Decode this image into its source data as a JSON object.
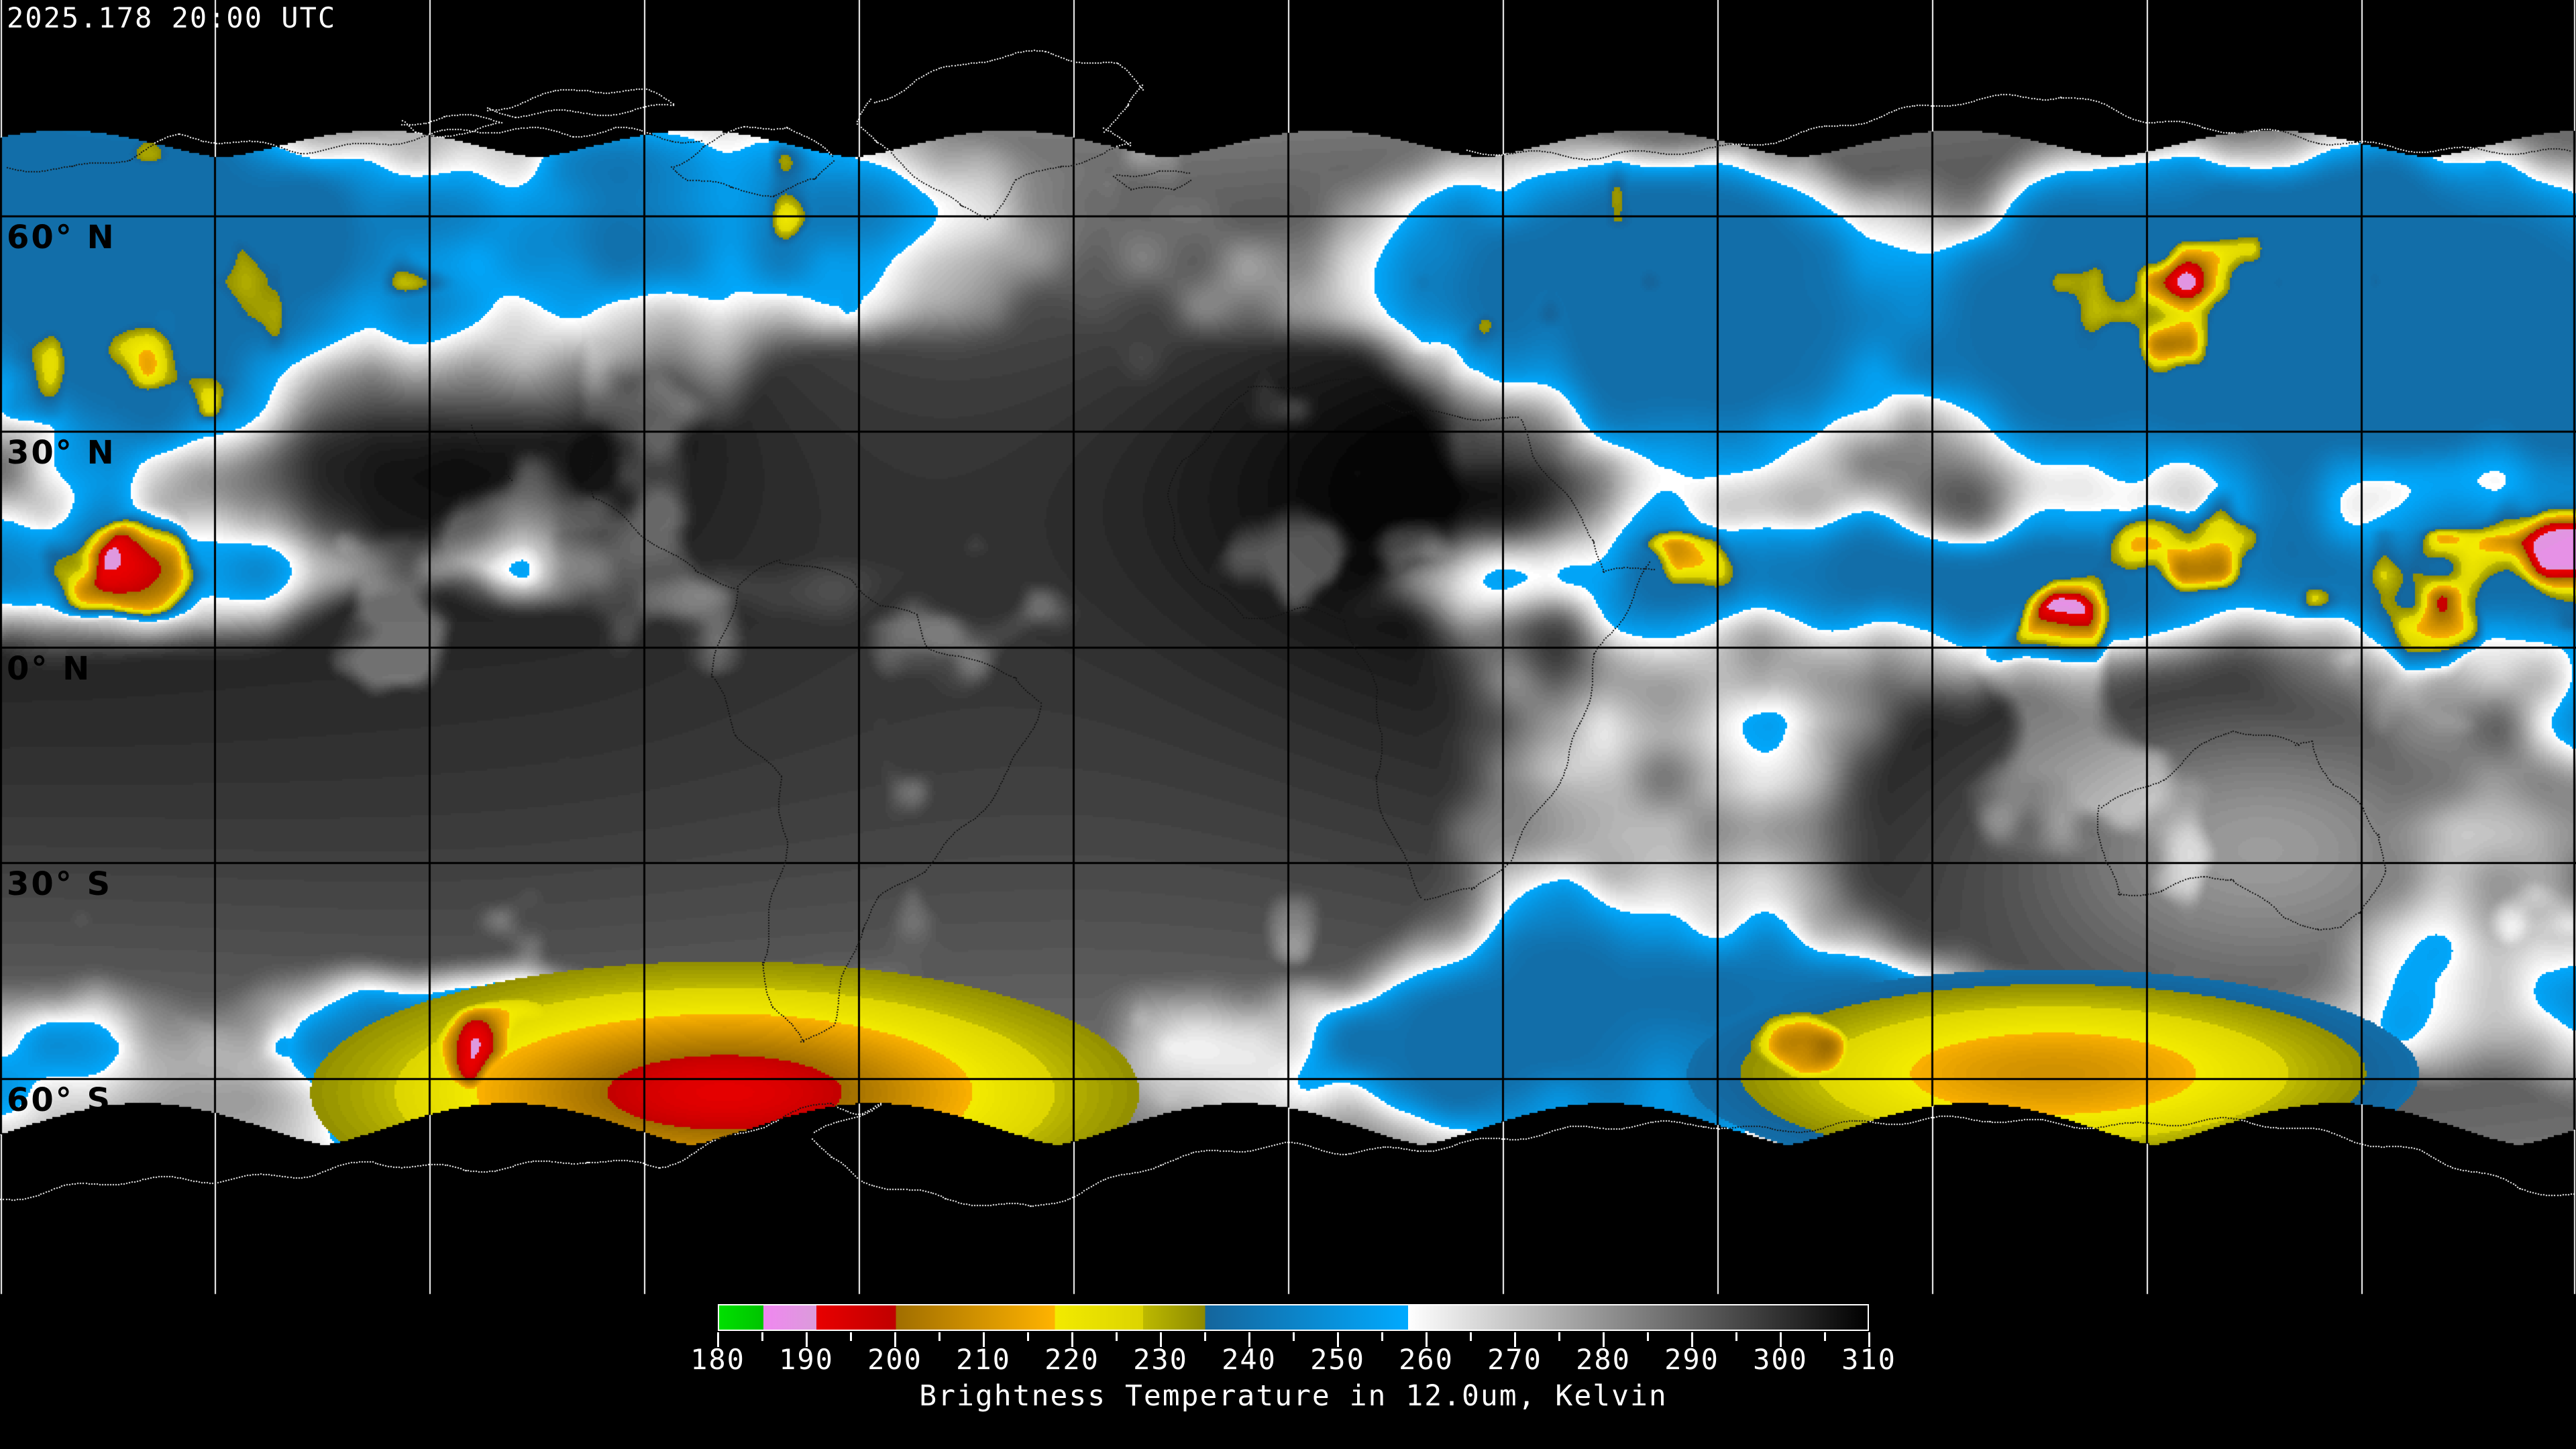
{
  "header": {
    "timestamp": "2025.178 20:00 UTC"
  },
  "map": {
    "projection": "equirectangular",
    "grid_spacing_deg": 30,
    "latitude_labels": [
      {
        "text": "60° N",
        "lat": 60
      },
      {
        "text": "30° N",
        "lat": 30
      },
      {
        "text": "0° N",
        "lat": 0
      },
      {
        "text": "30° S",
        "lat": -30
      },
      {
        "text": "60° S",
        "lat": -60
      }
    ]
  },
  "colorbar": {
    "title": "Brightness Temperature in 12.0um, Kelvin",
    "min_k": 180,
    "max_k": 310,
    "major_tick_step": 10,
    "minor_tick_step": 5,
    "tick_labels": [
      "180",
      "190",
      "200",
      "210",
      "220",
      "230",
      "240",
      "250",
      "260",
      "270",
      "280",
      "290",
      "300",
      "310"
    ],
    "segments": [
      {
        "from": 180,
        "to": 185,
        "c1": "#00E000",
        "c2": "#00C400"
      },
      {
        "from": 185,
        "to": 191,
        "c1": "#F087F0",
        "c2": "#DB9BDB"
      },
      {
        "from": 191,
        "to": 200,
        "c1": "#E80000",
        "c2": "#C00000"
      },
      {
        "from": 200,
        "to": 218,
        "c1": "#A06E00",
        "c2": "#FFB300"
      },
      {
        "from": 218,
        "to": 228,
        "c1": "#F2EA00",
        "c2": "#DCD400"
      },
      {
        "from": 228,
        "to": 235,
        "c1": "#BDB900",
        "c2": "#8C8900"
      },
      {
        "from": 235,
        "to": 258,
        "c1": "#15659C",
        "c2": "#00AAFF"
      },
      {
        "from": 258,
        "to": 310,
        "c1": "#FFFFFF",
        "c2": "#000000"
      }
    ]
  },
  "colors": {
    "background": "#000000",
    "grid_on_data": "#000000",
    "grid_on_space": "#FFFFFF",
    "coast_on_space": "#FFFFFF",
    "coast_on_data": "#141414",
    "text": "#FFFFFF",
    "lat_label_text": "#000000"
  }
}
